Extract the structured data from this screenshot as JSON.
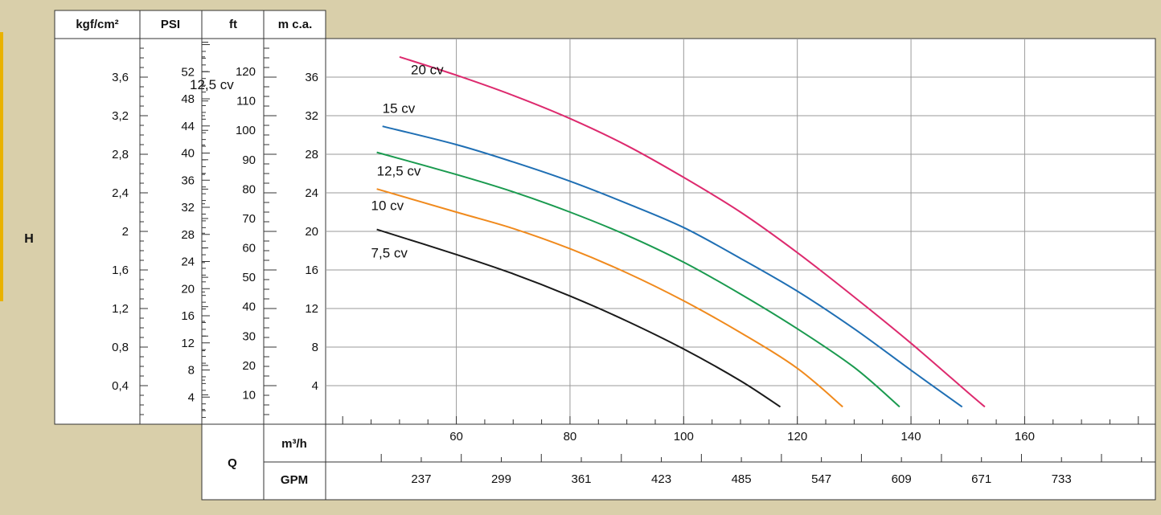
{
  "headers": {
    "kgf": "kgf/cm²",
    "psi": "PSI",
    "ft": "ft",
    "mca": "m c.a."
  },
  "labels": {
    "h": "H",
    "q": "Q",
    "m3h": "m³/h",
    "gpm": "GPM",
    "stray": "12,5 cv"
  },
  "scales": {
    "kgf": [
      "3,6",
      "3,2",
      "2,8",
      "2,4",
      "2",
      "1,6",
      "1,2",
      "0,8",
      "0,4"
    ],
    "psi": [
      "52",
      "48",
      "44",
      "40",
      "36",
      "32",
      "28",
      "24",
      "20",
      "16",
      "12",
      "8",
      "4"
    ],
    "ft": [
      "120",
      "110",
      "100",
      "90",
      "80",
      "70",
      "60",
      "50",
      "40",
      "30",
      "20",
      "10"
    ],
    "gpm": [
      "237",
      "299",
      "361",
      "423",
      "485",
      "547",
      "609",
      "671",
      "733"
    ]
  },
  "colors": {
    "background": "#d9cfaa",
    "grid": "#9a9a9a"
  },
  "chart_data": {
    "type": "line",
    "xlabel": "m³/h",
    "ylabel": "m c.a.",
    "xlim": [
      37,
      183
    ],
    "ylim": [
      0,
      40
    ],
    "x_ticks": [
      "60",
      "80",
      "100",
      "120",
      "140",
      "160"
    ],
    "y_ticks": [
      "4",
      "8",
      "12",
      "16",
      "20",
      "24",
      "28",
      "32",
      "36"
    ],
    "grid": true,
    "series": [
      {
        "name": "20 cv",
        "color": "#dd2a6e",
        "points": [
          [
            50,
            38.1
          ],
          [
            60,
            36.2
          ],
          [
            70,
            34.1
          ],
          [
            80,
            31.7
          ],
          [
            90,
            28.9
          ],
          [
            100,
            25.6
          ],
          [
            110,
            22.0
          ],
          [
            120,
            17.8
          ],
          [
            130,
            13.2
          ],
          [
            140,
            8.4
          ],
          [
            150,
            3.3
          ],
          [
            153,
            1.8
          ]
        ]
      },
      {
        "name": "15 cv",
        "color": "#1f6fb4",
        "points": [
          [
            47,
            30.9
          ],
          [
            60,
            29.0
          ],
          [
            70,
            27.2
          ],
          [
            80,
            25.2
          ],
          [
            90,
            22.9
          ],
          [
            100,
            20.4
          ],
          [
            110,
            17.2
          ],
          [
            120,
            13.8
          ],
          [
            130,
            9.9
          ],
          [
            140,
            5.6
          ],
          [
            149,
            1.8
          ]
        ]
      },
      {
        "name": "12,5 cv",
        "color": "#1a9a4f",
        "points": [
          [
            46,
            28.2
          ],
          [
            60,
            25.9
          ],
          [
            70,
            24.1
          ],
          [
            80,
            22.0
          ],
          [
            90,
            19.6
          ],
          [
            100,
            16.8
          ],
          [
            110,
            13.5
          ],
          [
            120,
            9.9
          ],
          [
            130,
            5.9
          ],
          [
            138,
            1.8
          ]
        ]
      },
      {
        "name": "10 cv",
        "color": "#f08a1d",
        "points": [
          [
            46,
            24.4
          ],
          [
            60,
            22.0
          ],
          [
            70,
            20.3
          ],
          [
            80,
            18.2
          ],
          [
            90,
            15.7
          ],
          [
            100,
            12.8
          ],
          [
            110,
            9.5
          ],
          [
            120,
            5.8
          ],
          [
            128,
            1.8
          ]
        ]
      },
      {
        "name": "7,5 cv",
        "color": "#1a1a1a",
        "points": [
          [
            46,
            20.2
          ],
          [
            60,
            17.6
          ],
          [
            70,
            15.6
          ],
          [
            80,
            13.3
          ],
          [
            90,
            10.7
          ],
          [
            100,
            7.8
          ],
          [
            110,
            4.5
          ],
          [
            117,
            1.8
          ]
        ]
      }
    ]
  }
}
